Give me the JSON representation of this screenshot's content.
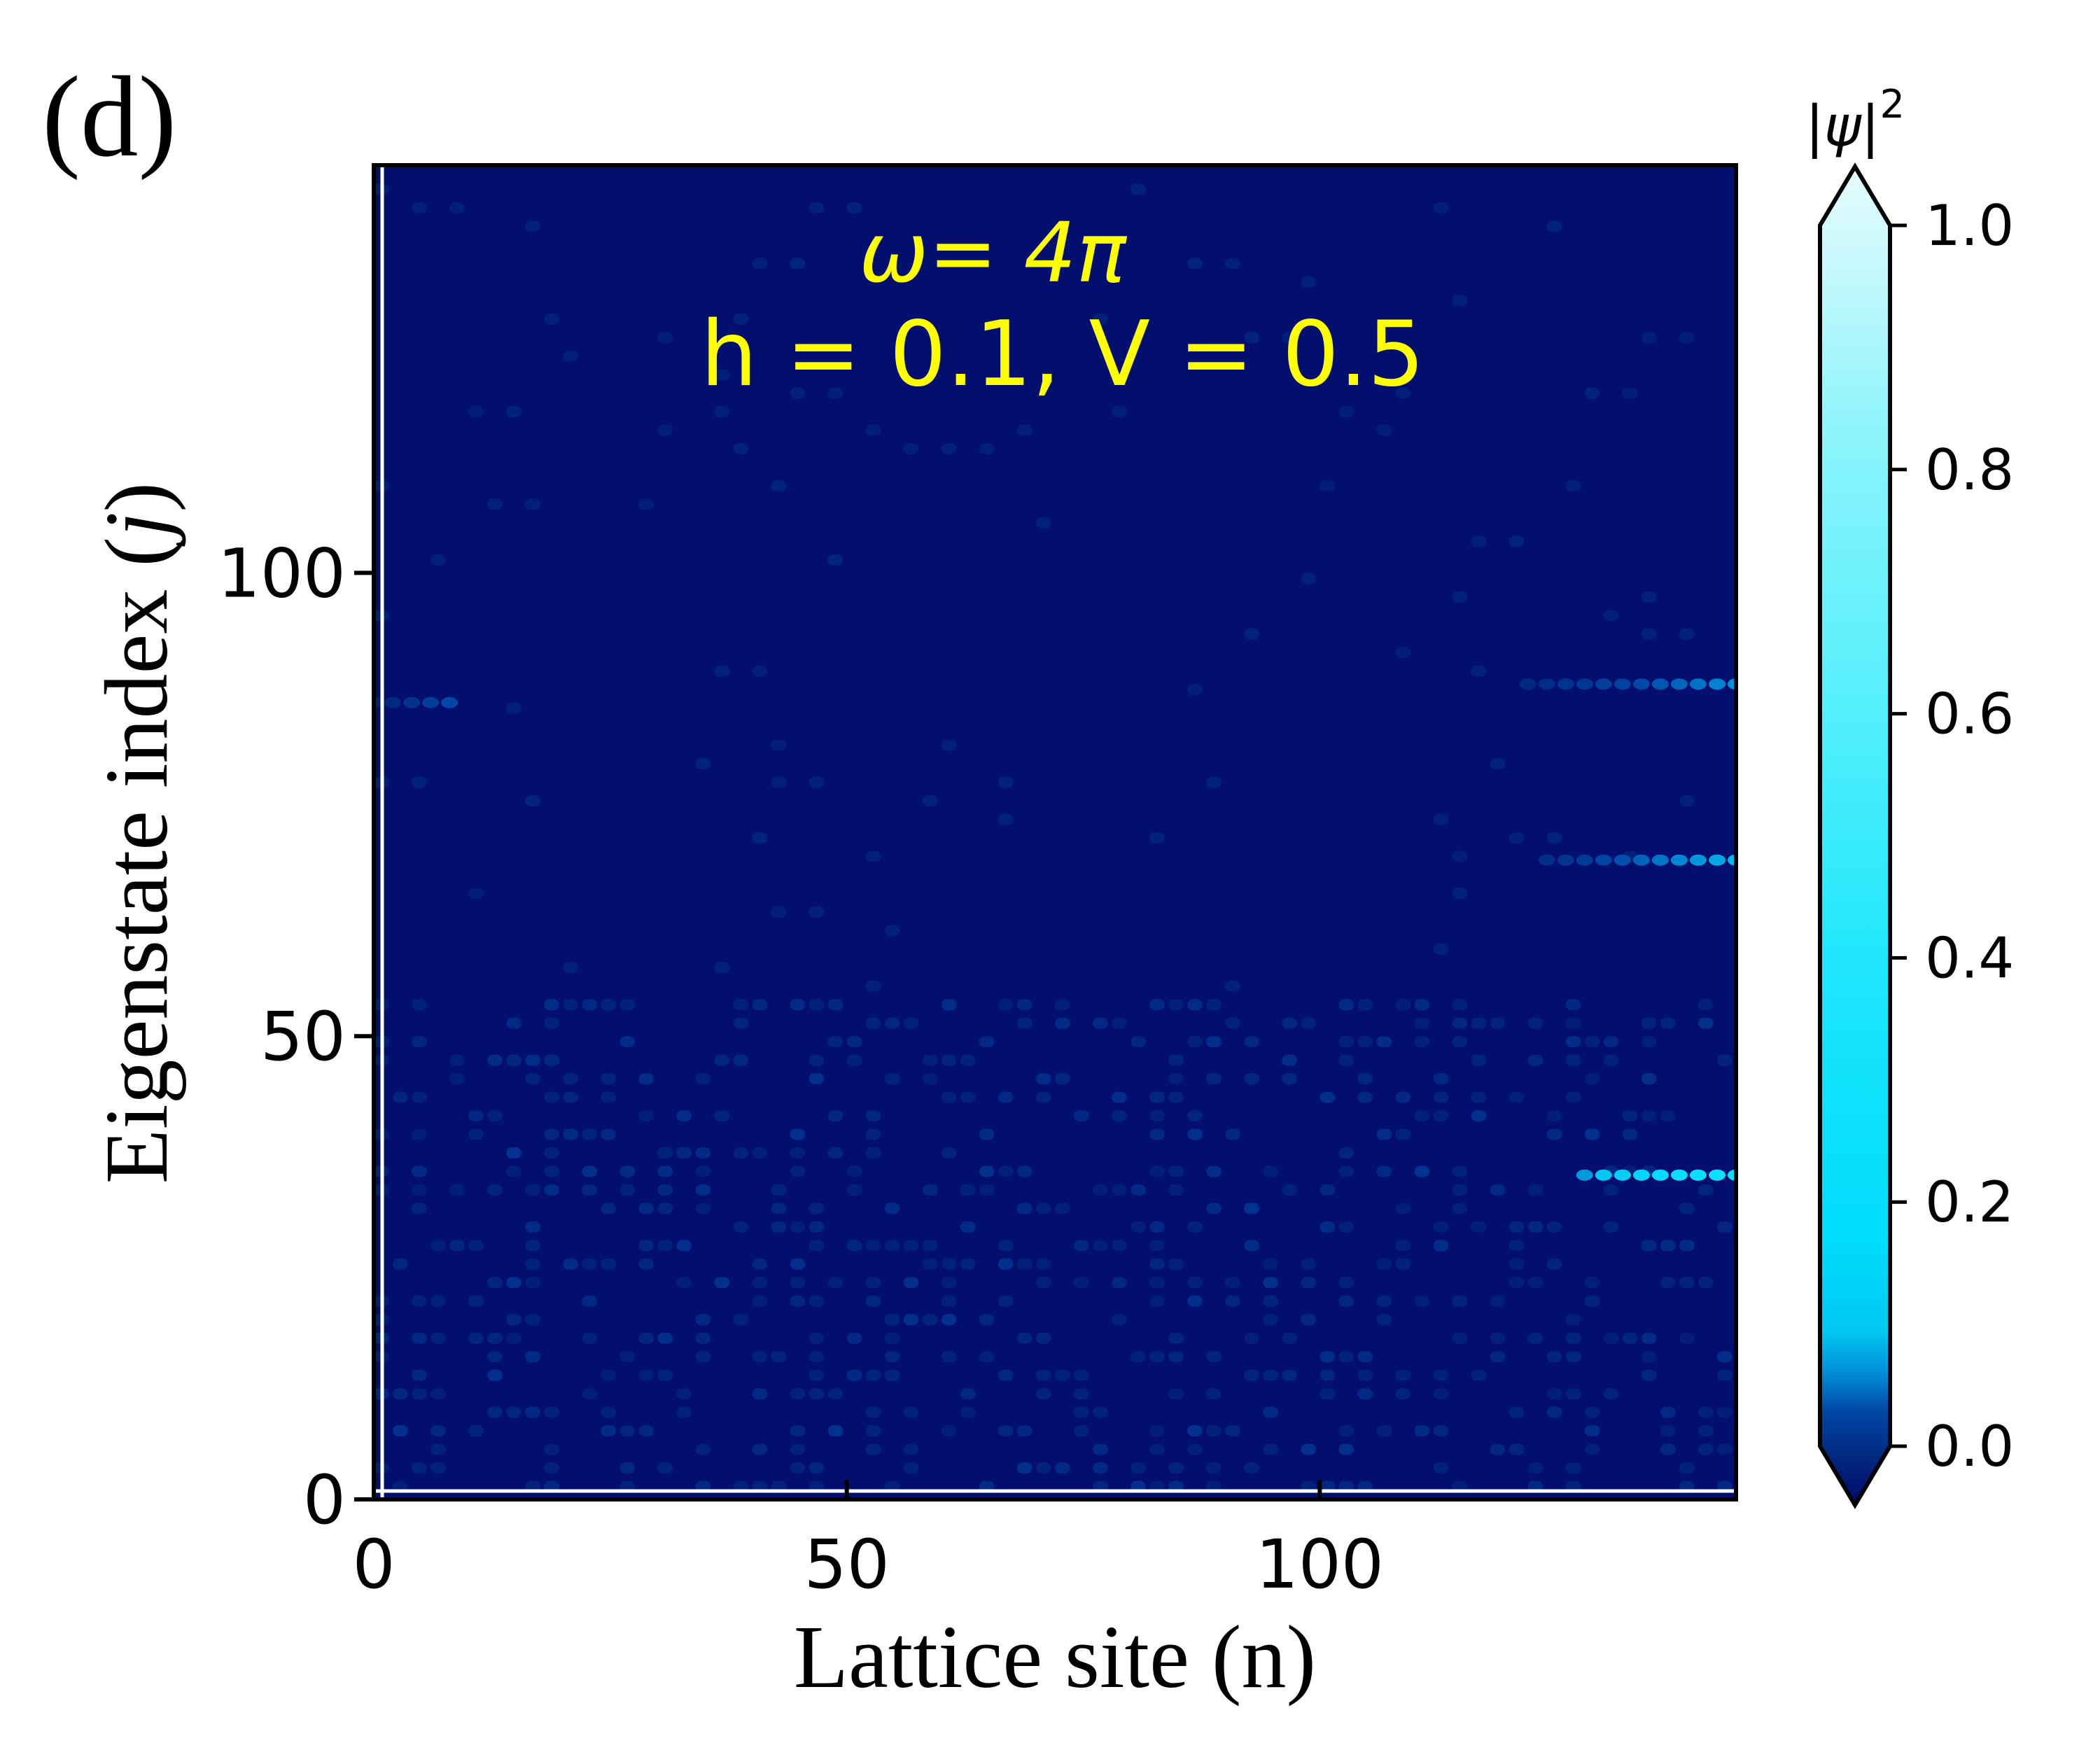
{
  "panel_label": "(d)",
  "chart_data": {
    "type": "heatmap",
    "title": "",
    "xlabel": "Lattice site (n)",
    "ylabel_main": "Eigenstate index (",
    "ylabel_var": "j",
    "ylabel_close": ")",
    "xlim": [
      0,
      144
    ],
    "ylim": [
      0,
      144
    ],
    "x_ticks": [
      {
        "value": 0,
        "label": "0"
      },
      {
        "value": 50,
        "label": "50"
      },
      {
        "value": 100,
        "label": "100"
      }
    ],
    "y_ticks": [
      {
        "value": 0,
        "label": "0"
      },
      {
        "value": 50,
        "label": "50"
      },
      {
        "value": 100,
        "label": "100"
      }
    ],
    "annotation_line1": "ω= 4π",
    "annotation_line2": "h = 0.1, V = 0.5",
    "annotation_color": "#ffff00",
    "colorbar": {
      "label_base": "|ψ|",
      "label_exp": "2",
      "range": [
        0.0,
        1.0
      ],
      "extend": "both",
      "ticks": [
        {
          "value": 0.0,
          "label": "0.0"
        },
        {
          "value": 0.2,
          "label": "0.2"
        },
        {
          "value": 0.4,
          "label": "0.4"
        },
        {
          "value": 0.6,
          "label": "0.6"
        },
        {
          "value": 0.8,
          "label": "0.8"
        },
        {
          "value": 1.0,
          "label": "1.0"
        }
      ],
      "colors": [
        "#000a6b",
        "#02237a",
        "#0047a5",
        "#0090d8",
        "#00c8f2",
        "#00dcfc",
        "#1ee6fc",
        "#55f0fc",
        "#8cf4fc",
        "#c8f8fc",
        "#e6fcfe"
      ]
    },
    "background_value": 0.02,
    "bright_streaks": [
      {
        "j": 35,
        "n_start": 128,
        "n_end": 144,
        "peak": 0.3
      },
      {
        "j": 69,
        "n_start": 124,
        "n_end": 144,
        "peak": 0.12
      },
      {
        "j": 88,
        "n_start": 122,
        "n_end": 144,
        "peak": 0.1
      },
      {
        "j": 86,
        "n_start": 0,
        "n_end": 8,
        "peak": 0.07
      }
    ]
  }
}
